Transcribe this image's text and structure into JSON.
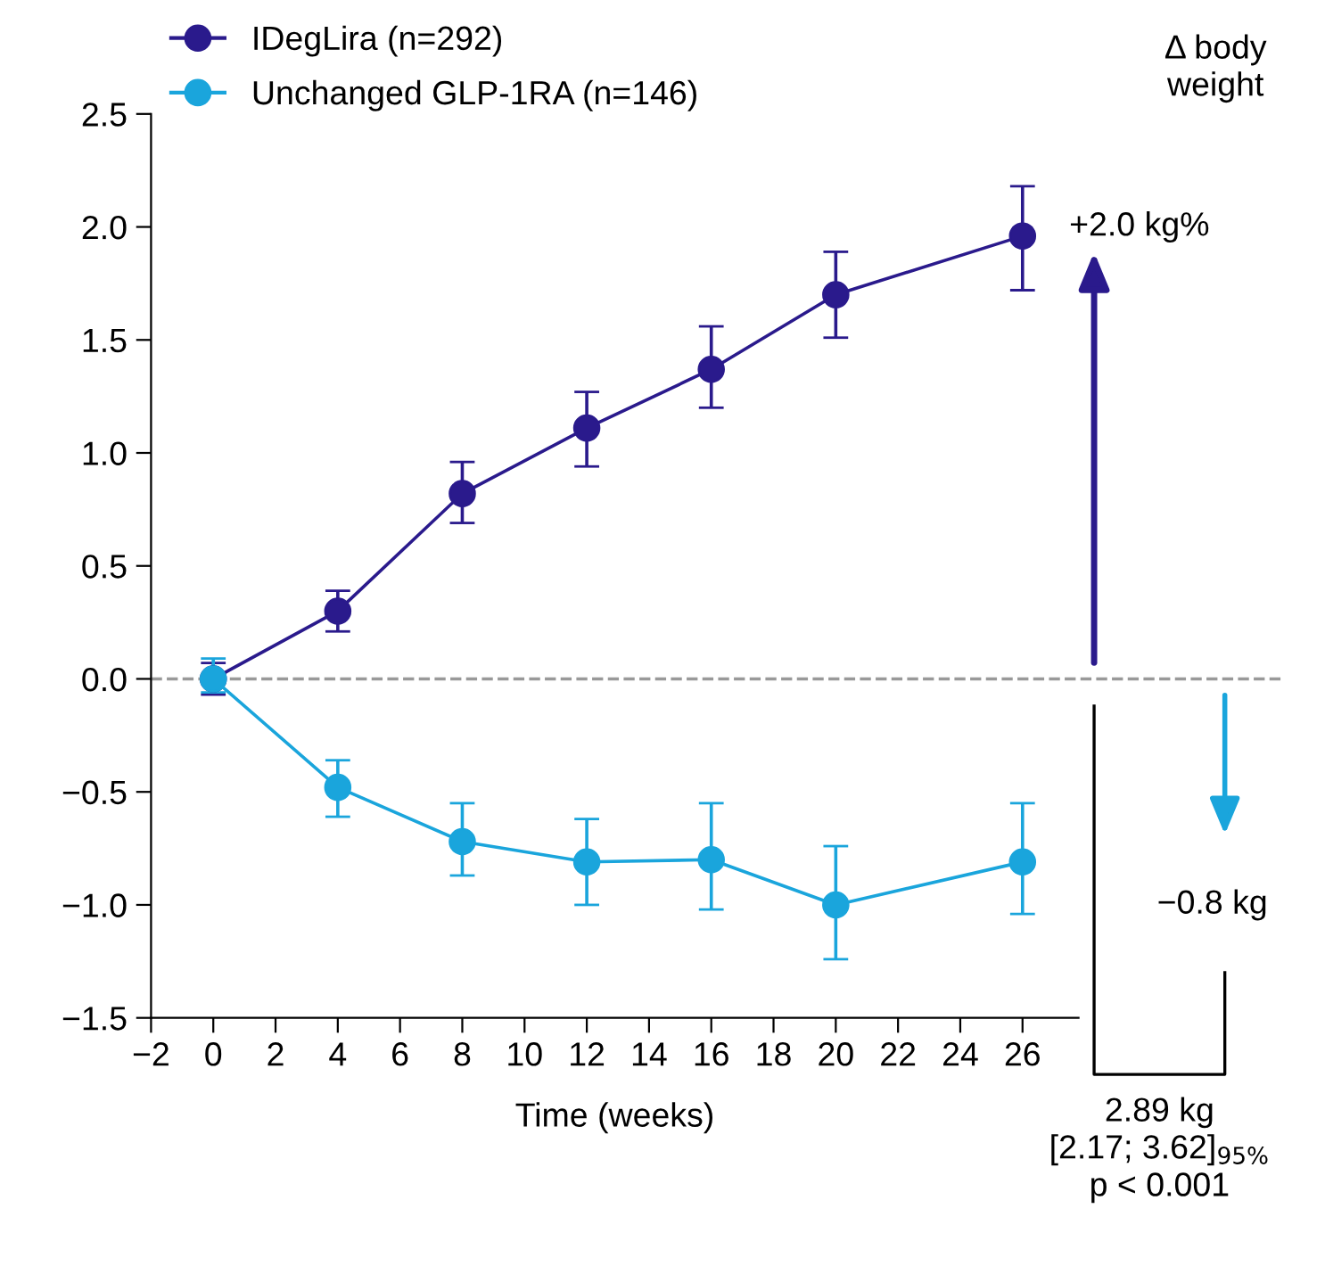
{
  "chart_data": {
    "type": "line",
    "xlabel": "Time (weeks)",
    "x": [
      0,
      4,
      8,
      12,
      16,
      20,
      26
    ],
    "series": [
      {
        "name": "IDegLira (n=292)",
        "color": "#2a1a8c",
        "values": [
          0.0,
          0.3,
          0.82,
          1.11,
          1.37,
          1.7,
          1.96
        ],
        "errors": [
          [
            -0.07,
            0.07
          ],
          [
            0.21,
            0.39
          ],
          [
            0.69,
            0.96
          ],
          [
            0.94,
            1.27
          ],
          [
            1.2,
            1.56
          ],
          [
            1.51,
            1.89
          ],
          [
            1.72,
            2.18
          ]
        ]
      },
      {
        "name": "Unchanged GLP-1RA (n=146)",
        "color": "#1aa5dc",
        "values": [
          0.0,
          -0.48,
          -0.72,
          -0.81,
          -0.8,
          -1.0,
          -0.81
        ],
        "errors": [
          [
            -0.06,
            0.09
          ],
          [
            -0.61,
            -0.36
          ],
          [
            -0.87,
            -0.55
          ],
          [
            -1.0,
            -0.62
          ],
          [
            -1.02,
            -0.55
          ],
          [
            -1.24,
            -0.74
          ],
          [
            -1.04,
            -0.55
          ]
        ]
      }
    ],
    "xlim": [
      -2,
      27.8
    ],
    "xticks": [
      {
        "value": -2,
        "label": "−2"
      },
      0,
      2,
      4,
      6,
      8,
      10,
      12,
      14,
      16,
      18,
      20,
      22,
      24,
      26
    ],
    "ylim": [
      -1.5,
      2.5
    ],
    "yticks": [
      {
        "value": -1.5,
        "label": "−1.5"
      },
      {
        "value": -1.0,
        "label": "−1.0"
      },
      {
        "value": -0.5,
        "label": "−0.5"
      },
      {
        "value": 0,
        "label": "0.0"
      },
      0.5,
      {
        "value": 1.0,
        "label": "1.0"
      },
      1.5,
      {
        "value": 2.0,
        "label": "2.0"
      },
      2.5
    ],
    "ref_lines": [
      {
        "axis": "y",
        "value": 0,
        "color": "#999999",
        "line_style": "dashed"
      }
    ],
    "marker": "circle",
    "line_style": "solid",
    "grid": false,
    "legend": "top left",
    "annotations": [
      "Δ body\nweight",
      "+2.0 kg%",
      "−0.8 kg",
      "2.89 kg\n[2.17; 3.62]$_{95%}$\np < 0.001"
    ]
  }
}
